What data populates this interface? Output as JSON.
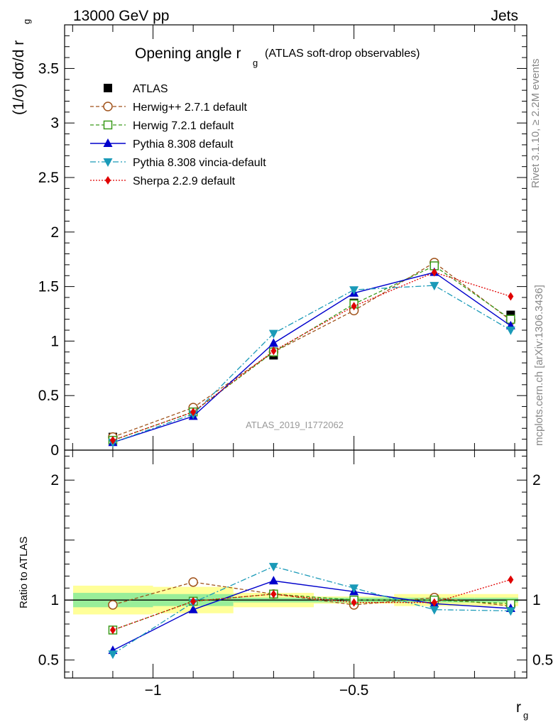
{
  "header": {
    "energy": "13000 GeV pp",
    "category": "Jets",
    "title_main": "Opening angle r",
    "title_sub": "g",
    "title_tail": "(ATLAS soft-drop observables)",
    "watermark": "ATLAS_2019_I1772062",
    "side_rivet": "Rivet 3.1.10, ≥ 2.2M events",
    "side_mcplots": "mcplots.cern.ch [arXiv:1306.3436]"
  },
  "colors": {
    "ATLAS": "#000000",
    "herwigpp": "#a0521a",
    "herwig7": "#3a9a1a",
    "pythia": "#0000cc",
    "vincia": "#1a9ab8",
    "sherpa": "#e00000",
    "band_inner": "#99ee99",
    "band_outer": "#ffff99"
  },
  "chart_data": [
    {
      "type": "line",
      "panel": "main",
      "ylabel": "(1/σ) dσ/d r",
      "ylabel_sub": "g",
      "xlim": [
        -1.22,
        -0.07
      ],
      "ylim": [
        0,
        3.9
      ],
      "ytick_labels": [
        "0",
        "0.5",
        "1",
        "1.5",
        "2",
        "2.5",
        "3",
        "3.5"
      ],
      "ytick_values": [
        0,
        0.5,
        1,
        1.5,
        2,
        2.5,
        3,
        3.5
      ],
      "legend_placement": "top-left",
      "x": [
        -1.1,
        -0.9,
        -0.7,
        -0.5,
        -0.3,
        -0.11
      ],
      "series": [
        {
          "name": "ATLAS",
          "key": "ATLAS",
          "values": [
            0.12,
            0.36,
            0.87,
            1.35,
            1.69,
            1.24
          ]
        },
        {
          "name": "Herwig++ 2.7.1 default",
          "key": "herwigpp",
          "values": [
            0.12,
            0.39,
            0.9,
            1.28,
            1.72,
            1.19
          ]
        },
        {
          "name": "Herwig 7.2.1 default",
          "key": "herwig7",
          "values": [
            0.09,
            0.35,
            0.9,
            1.34,
            1.69,
            1.2
          ]
        },
        {
          "name": "Pythia 8.308 default",
          "key": "pythia",
          "values": [
            0.07,
            0.31,
            0.98,
            1.44,
            1.63,
            1.14
          ]
        },
        {
          "name": "Pythia 8.308 vincia-default",
          "key": "vincia",
          "values": [
            0.07,
            0.33,
            1.07,
            1.47,
            1.51,
            1.1
          ]
        },
        {
          "name": "Sherpa 2.2.9 default",
          "key": "sherpa",
          "values": [
            0.09,
            0.35,
            0.91,
            1.32,
            1.63,
            1.41
          ]
        }
      ]
    },
    {
      "type": "line",
      "panel": "ratio",
      "ylabel": "Ratio to ATLAS",
      "xlabel": "r",
      "xlabel_sub": "g",
      "xlim": [
        -1.22,
        -0.07
      ],
      "ylim": [
        0.35,
        2.25
      ],
      "xtick_labels": [
        "−1",
        "−0.5"
      ],
      "xtick_values": [
        -1,
        -0.5
      ],
      "ytick_labels": [
        "0.5",
        "1",
        "2"
      ],
      "ytick_values": [
        0.5,
        1,
        2
      ],
      "x": [
        -1.1,
        -0.9,
        -0.7,
        -0.5,
        -0.3,
        -0.11
      ],
      "bins": [
        [
          -1.2,
          -1.0
        ],
        [
          -1.0,
          -0.8
        ],
        [
          -0.8,
          -0.6
        ],
        [
          -0.6,
          -0.4
        ],
        [
          -0.4,
          -0.2
        ],
        [
          -0.2,
          -0.07
        ]
      ],
      "band_inner": [
        [
          0.94,
          1.06
        ],
        [
          0.95,
          1.05
        ],
        [
          0.98,
          1.02
        ],
        [
          0.98,
          1.02
        ],
        [
          0.98,
          1.02
        ],
        [
          0.98,
          1.02
        ]
      ],
      "band_outer": [
        [
          0.88,
          1.12
        ],
        [
          0.89,
          1.11
        ],
        [
          0.94,
          1.06
        ],
        [
          0.97,
          1.03
        ],
        [
          0.95,
          1.05
        ],
        [
          0.95,
          1.05
        ]
      ],
      "series": [
        {
          "name": "Herwig++ 2.7.1 default",
          "key": "herwigpp",
          "values": [
            0.96,
            1.15,
            1.05,
            0.96,
            1.02,
            0.95
          ]
        },
        {
          "name": "Herwig 7.2.1 default",
          "key": "herwig7",
          "values": [
            0.75,
            0.99,
            1.05,
            1.0,
            1.0,
            0.97
          ]
        },
        {
          "name": "Pythia 8.308 default",
          "key": "pythia",
          "values": [
            0.58,
            0.92,
            1.16,
            1.07,
            0.97,
            0.93
          ]
        },
        {
          "name": "Pythia 8.308 vincia-default",
          "key": "vincia",
          "values": [
            0.55,
            0.98,
            1.28,
            1.1,
            0.92,
            0.91
          ]
        },
        {
          "name": "Sherpa 2.2.9 default",
          "key": "sherpa",
          "values": [
            0.75,
            0.99,
            1.05,
            0.98,
            0.98,
            1.17
          ]
        }
      ]
    }
  ]
}
